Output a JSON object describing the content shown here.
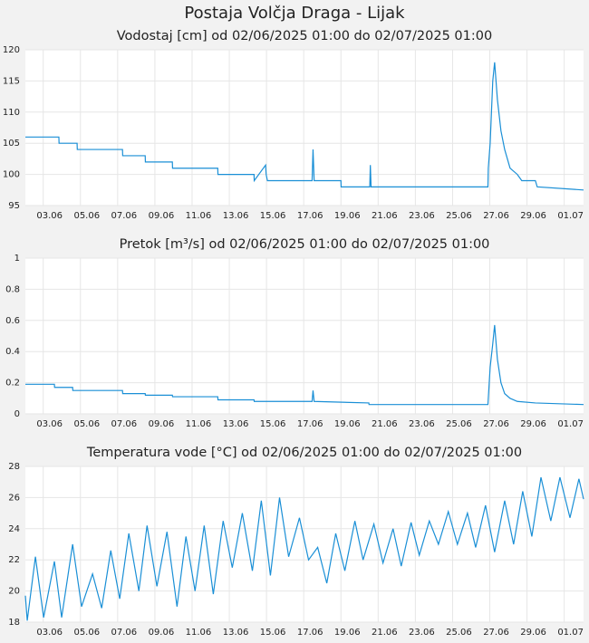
{
  "title": "Postaja Volčja Draga - Lijak",
  "chart_data": [
    {
      "type": "line",
      "title": "Vodostaj [cm] od 02/06/2025 01:00 do 02/07/2025 01:00",
      "color": "#1a8fd6",
      "grid": true,
      "xlim": [
        2.04,
        32.04
      ],
      "ylim": [
        95,
        120
      ],
      "yticks": [
        95,
        100,
        105,
        110,
        115,
        120
      ],
      "xticks": [
        {
          "value": 3,
          "label": "03.06"
        },
        {
          "value": 5,
          "label": "05.06"
        },
        {
          "value": 7,
          "label": "07.06"
        },
        {
          "value": 9,
          "label": "09.06"
        },
        {
          "value": 11,
          "label": "11.06"
        },
        {
          "value": 13,
          "label": "13.06"
        },
        {
          "value": 15,
          "label": "15.06"
        },
        {
          "value": 17,
          "label": "17.06"
        },
        {
          "value": 19,
          "label": "19.06"
        },
        {
          "value": 21,
          "label": "21.06"
        },
        {
          "value": 23,
          "label": "23.06"
        },
        {
          "value": 25,
          "label": "25.06"
        },
        {
          "value": 27,
          "label": "27.06"
        },
        {
          "value": 29,
          "label": "29.06"
        },
        {
          "value": 31,
          "label": "01.07"
        }
      ],
      "x": [
        2.04,
        3.84,
        3.85,
        4.82,
        4.83,
        7.26,
        7.27,
        8.48,
        8.49,
        9.94,
        9.95,
        12.38,
        12.39,
        14.33,
        14.34,
        14.95,
        14.98,
        15.05,
        17.45,
        17.5,
        17.56,
        19.0,
        19.01,
        20.55,
        20.58,
        20.62,
        26.9,
        26.92,
        27.02,
        27.16,
        27.26,
        27.41,
        27.6,
        27.8,
        28.09,
        28.48,
        28.72,
        29.45,
        29.55,
        32.04
      ],
      "values": [
        106,
        106,
        105,
        105,
        104,
        104,
        103,
        103,
        102,
        102,
        101,
        101,
        100,
        100,
        99,
        101.5,
        100,
        99,
        99,
        104,
        99,
        99,
        98,
        98,
        101.5,
        98,
        98,
        101,
        105,
        115,
        118,
        112,
        107,
        104,
        101,
        100,
        99,
        99,
        98,
        97.5
      ]
    },
    {
      "type": "line",
      "title": "Pretok [m³/s] od 02/06/2025 01:00 do 02/07/2025 01:00",
      "color": "#1a8fd6",
      "grid": true,
      "xlim": [
        2.04,
        32.04
      ],
      "ylim": [
        0,
        1
      ],
      "yticks": [
        0,
        0.2,
        0.4,
        0.6,
        0.8,
        1
      ],
      "xticks": [
        {
          "value": 3,
          "label": "03.06"
        },
        {
          "value": 5,
          "label": "05.06"
        },
        {
          "value": 7,
          "label": "07.06"
        },
        {
          "value": 9,
          "label": "09.06"
        },
        {
          "value": 11,
          "label": "11.06"
        },
        {
          "value": 13,
          "label": "13.06"
        },
        {
          "value": 15,
          "label": "15.06"
        },
        {
          "value": 17,
          "label": "17.06"
        },
        {
          "value": 19,
          "label": "19.06"
        },
        {
          "value": 21,
          "label": "21.06"
        },
        {
          "value": 23,
          "label": "23.06"
        },
        {
          "value": 25,
          "label": "25.06"
        },
        {
          "value": 27,
          "label": "27.06"
        },
        {
          "value": 29,
          "label": "29.06"
        },
        {
          "value": 31,
          "label": "01.07"
        }
      ],
      "x": [
        2.04,
        3.6,
        3.61,
        4.58,
        4.59,
        7.26,
        7.27,
        8.48,
        8.49,
        9.94,
        9.95,
        12.38,
        12.39,
        14.33,
        14.34,
        17.45,
        17.5,
        17.56,
        20.5,
        20.51,
        26.9,
        27.02,
        27.16,
        27.26,
        27.41,
        27.6,
        27.8,
        28.09,
        28.48,
        29.45,
        32.04
      ],
      "values": [
        0.19,
        0.19,
        0.17,
        0.17,
        0.15,
        0.15,
        0.13,
        0.13,
        0.12,
        0.12,
        0.11,
        0.11,
        0.09,
        0.09,
        0.08,
        0.08,
        0.15,
        0.08,
        0.07,
        0.06,
        0.06,
        0.3,
        0.45,
        0.57,
        0.35,
        0.2,
        0.13,
        0.1,
        0.08,
        0.07,
        0.06
      ]
    },
    {
      "type": "line",
      "title": "Temperatura vode [°C] od 02/06/2025 01:00 do 02/07/2025 01:00",
      "color": "#1a8fd6",
      "grid": true,
      "xlim": [
        2.04,
        32.04
      ],
      "ylim": [
        18,
        28
      ],
      "yticks": [
        18,
        20,
        22,
        24,
        26,
        28
      ],
      "xticks": [
        {
          "value": 3,
          "label": "03.06"
        },
        {
          "value": 5,
          "label": "05.06"
        },
        {
          "value": 7,
          "label": "07.06"
        },
        {
          "value": 9,
          "label": "09.06"
        },
        {
          "value": 11,
          "label": "11.06"
        },
        {
          "value": 13,
          "label": "13.06"
        },
        {
          "value": 15,
          "label": "15.06"
        },
        {
          "value": 17,
          "label": "17.06"
        },
        {
          "value": 19,
          "label": "19.06"
        },
        {
          "value": 21,
          "label": "21.06"
        },
        {
          "value": 23,
          "label": "23.06"
        },
        {
          "value": 25,
          "label": "25.06"
        },
        {
          "value": 27,
          "label": "27.06"
        },
        {
          "value": 29,
          "label": "29.06"
        },
        {
          "value": 31,
          "label": "01.07"
        }
      ],
      "x": [
        2.04,
        2.14,
        2.58,
        3.02,
        3.6,
        3.99,
        4.58,
        5.06,
        5.65,
        6.14,
        6.63,
        7.11,
        7.6,
        8.14,
        8.58,
        9.11,
        9.65,
        10.19,
        10.67,
        11.16,
        11.65,
        12.14,
        12.67,
        13.16,
        13.7,
        14.24,
        14.72,
        15.21,
        15.7,
        16.19,
        16.77,
        17.26,
        17.75,
        18.24,
        18.72,
        19.21,
        19.75,
        20.19,
        20.77,
        21.26,
        21.8,
        22.24,
        22.77,
        23.21,
        23.75,
        24.24,
        24.77,
        25.26,
        25.8,
        26.24,
        26.77,
        27.26,
        27.8,
        28.28,
        28.77,
        29.26,
        29.75,
        30.28,
        30.77,
        31.31,
        31.79,
        32.04
      ],
      "values": [
        19.7,
        18.1,
        22.2,
        18.3,
        21.9,
        18.3,
        23.0,
        19.0,
        21.1,
        18.9,
        22.6,
        19.5,
        23.7,
        20.0,
        24.2,
        20.3,
        23.8,
        19.0,
        23.5,
        20.0,
        24.2,
        19.8,
        24.5,
        21.5,
        25.0,
        21.3,
        25.8,
        21.0,
        26.0,
        22.2,
        24.7,
        22.0,
        22.8,
        20.5,
        23.7,
        21.3,
        24.5,
        22.0,
        24.3,
        21.8,
        24.0,
        21.6,
        24.4,
        22.3,
        24.5,
        23.0,
        25.1,
        23.0,
        25.0,
        22.8,
        25.5,
        22.5,
        25.8,
        23.0,
        26.4,
        23.5,
        27.3,
        24.5,
        27.3,
        24.7,
        27.2,
        25.9
      ]
    }
  ]
}
